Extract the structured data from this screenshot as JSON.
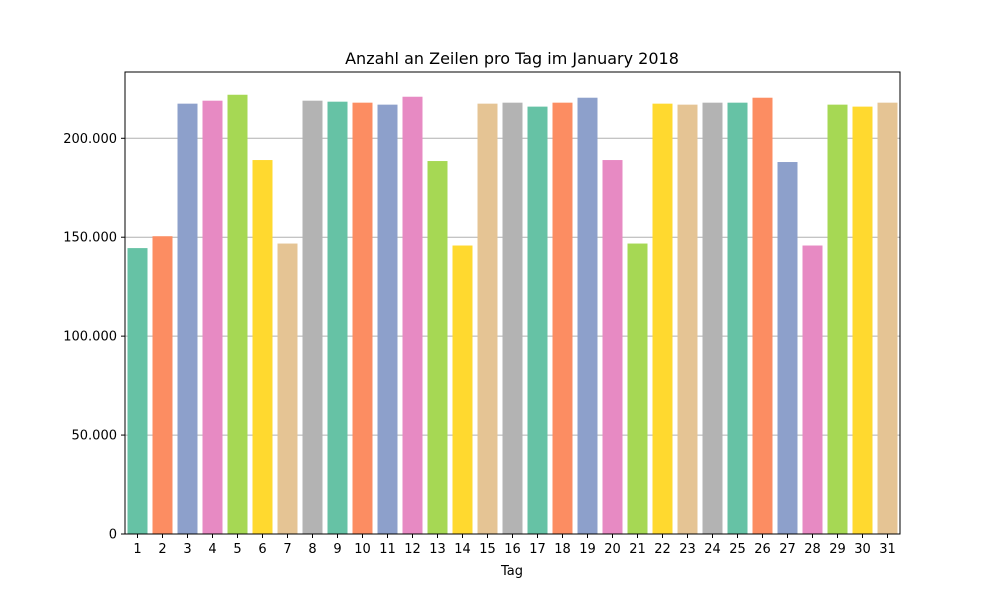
{
  "chart_data": {
    "type": "bar",
    "title": "Anzahl an Zeilen pro Tag im January 2018",
    "xlabel": "Tag",
    "ylabel": "",
    "ylim": [
      0,
      233500
    ],
    "yticks": [
      0,
      50000,
      100000,
      150000,
      200000
    ],
    "ytick_labels": [
      "0",
      "50.000",
      "100.000",
      "150.000",
      "200.000"
    ],
    "grid": "horizontal",
    "categories": [
      "1",
      "2",
      "3",
      "4",
      "5",
      "6",
      "7",
      "8",
      "9",
      "10",
      "11",
      "12",
      "13",
      "14",
      "15",
      "16",
      "17",
      "18",
      "19",
      "20",
      "21",
      "22",
      "23",
      "24",
      "25",
      "26",
      "27",
      "28",
      "29",
      "30",
      "31"
    ],
    "values": [
      144500,
      150500,
      217500,
      219000,
      222000,
      189000,
      146800,
      219000,
      218500,
      218000,
      217000,
      221000,
      188500,
      145800,
      217500,
      218000,
      216000,
      218000,
      220500,
      189000,
      146800,
      217500,
      217000,
      218000,
      218000,
      220500,
      188000,
      145800,
      217000,
      216000,
      218000
    ],
    "palette": [
      "#66c2a5",
      "#fc8d62",
      "#8da0cb",
      "#e78ac3",
      "#a6d854",
      "#ffd92f",
      "#e5c494",
      "#b3b3b3"
    ]
  }
}
